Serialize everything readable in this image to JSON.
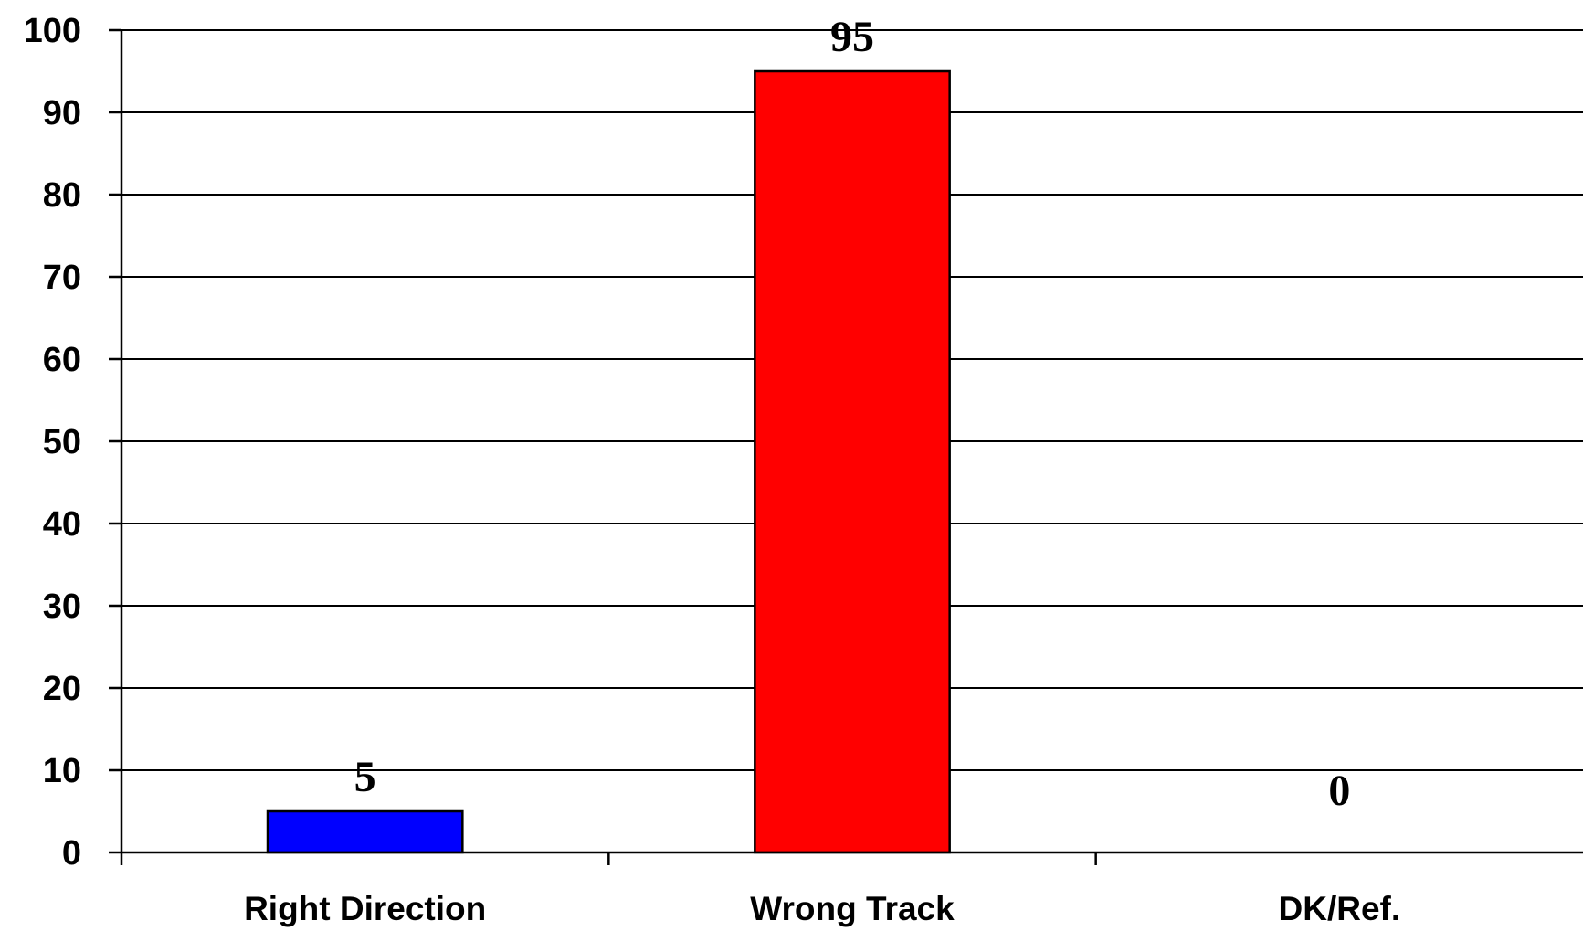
{
  "chart_data": {
    "type": "bar",
    "categories": [
      "Right Direction",
      "Wrong Track",
      "DK/Ref."
    ],
    "values": [
      5,
      95,
      0
    ],
    "data_labels": [
      "5",
      "95",
      "0"
    ],
    "colors": [
      "#0000ff",
      "#ff0000",
      "#808080"
    ],
    "title": "",
    "xlabel": "",
    "ylabel": "",
    "ylim": [
      0,
      100
    ],
    "yticks": [
      0,
      10,
      20,
      30,
      40,
      50,
      60,
      70,
      80,
      90,
      100
    ],
    "ytick_labels": [
      "0",
      "10",
      "20",
      "30",
      "40",
      "50",
      "60",
      "70",
      "80",
      "90",
      "100"
    ],
    "grid": true,
    "legend": "none"
  }
}
